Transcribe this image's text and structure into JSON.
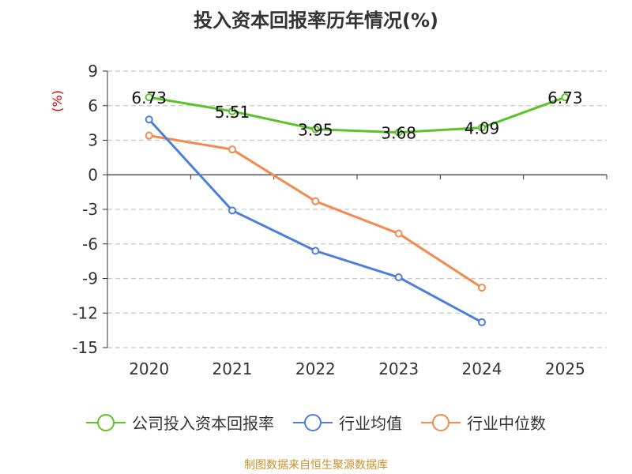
{
  "title": "投入资本回报率历年情况(%)",
  "source": "制图数据来自恒生聚源数据库",
  "chart_data": {
    "type": "line",
    "ylabel": "(%)",
    "categories": [
      "2020",
      "2021",
      "2022",
      "2023",
      "2024",
      "2025"
    ],
    "ylim": [
      -15,
      9
    ],
    "yticks": [
      9,
      6,
      3,
      0,
      -3,
      -6,
      -9,
      -12,
      -15
    ],
    "grid": true,
    "legend_position": "bottom",
    "series": [
      {
        "name": "公司投入资本回报率",
        "color": "#5cc22a",
        "values": [
          6.73,
          5.51,
          3.95,
          3.68,
          4.09,
          6.73
        ],
        "labels": [
          "6.73",
          "5.51",
          "3.95",
          "3.68",
          "4.09",
          "6.73"
        ]
      },
      {
        "name": "行业均值",
        "color": "#4a7fdb",
        "values": [
          4.8,
          -3.1,
          -6.6,
          -8.9,
          -12.8,
          null
        ]
      },
      {
        "name": "行业中位数",
        "color": "#f5894f",
        "values": [
          3.4,
          2.2,
          -2.3,
          -5.1,
          -9.8,
          null
        ]
      }
    ]
  }
}
